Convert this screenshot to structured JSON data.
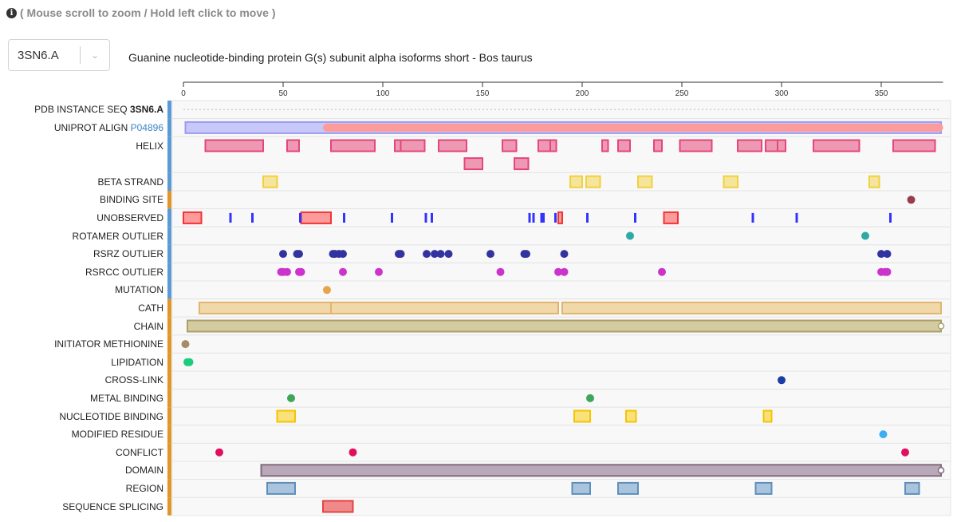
{
  "hint": {
    "icon": "info-circle-icon",
    "text": "( Mouse scroll to zoom / Hold left click to move )"
  },
  "selector": {
    "value": "3SN6.A"
  },
  "protein_title": "Guanine nucleotide-binding protein G(s) subunit alpha isoforms short - Bos taurus",
  "axis": {
    "ticks": [
      "0",
      "50",
      "100",
      "150",
      "200",
      "250",
      "300",
      "350"
    ],
    "range": [
      0,
      381
    ]
  },
  "tracks": [
    {
      "label": "PDB INSTANCE SEQ",
      "suffix": "3SN6.A",
      "suffix_style": "bold",
      "side": "#5b9bd5",
      "type": "seq"
    },
    {
      "label": "UNIPROT ALIGN",
      "suffix": "P04896",
      "suffix_style": "link",
      "side": "#5b9bd5",
      "type": "align",
      "fill": "#c8c8f8",
      "stroke": "#9a9af5",
      "band": "#fd9a9a",
      "features": [
        [
          1,
          380
        ]
      ],
      "aligned": [
        [
          70,
          381
        ]
      ]
    },
    {
      "label": "HELIX",
      "side": "#5b9bd5",
      "type": "rect",
      "rows": 2,
      "fill": "#ee99b4",
      "stroke": "#e4457a",
      "features": [
        [
          11,
          40
        ],
        [
          52,
          58
        ],
        [
          74,
          96
        ],
        [
          106,
          109
        ],
        [
          109,
          121
        ],
        [
          128,
          142
        ],
        [
          160,
          167
        ],
        [
          178,
          184
        ],
        [
          184,
          187
        ],
        [
          210,
          213
        ],
        [
          218,
          224
        ],
        [
          236,
          240
        ],
        [
          249,
          265
        ],
        [
          278,
          290
        ],
        [
          292,
          298
        ],
        [
          298,
          302
        ],
        [
          316,
          339
        ],
        [
          356,
          377
        ]
      ],
      "features2": [
        [
          141,
          150
        ],
        [
          166,
          173
        ]
      ]
    },
    {
      "label": "BETA STRAND",
      "side": "#5b9bd5",
      "type": "rect",
      "fill": "#f5e49b",
      "stroke": "#f1d13a",
      "features": [
        [
          40,
          47
        ],
        [
          194,
          200
        ],
        [
          202,
          209
        ],
        [
          228,
          235
        ],
        [
          271,
          278
        ],
        [
          344,
          349
        ]
      ]
    },
    {
      "label": "BINDING SITE",
      "side": "#e0962a",
      "type": "dot",
      "color": "#963c4c",
      "features": [
        365
      ]
    },
    {
      "label": "UNOBSERVED",
      "side": "#5b9bd5",
      "type": "rect",
      "fill": "#fd9a9a",
      "stroke": "#f33333",
      "features": [
        [
          0,
          9
        ],
        [
          59,
          74
        ],
        [
          188,
          190
        ],
        [
          241,
          248
        ]
      ],
      "bars": [
        23,
        34,
        58,
        80,
        104,
        121,
        124,
        173,
        175,
        179,
        180,
        186,
        202,
        226,
        285,
        307,
        354
      ],
      "bar_color": "#3333ff"
    },
    {
      "label": "ROTAMER OUTLIER",
      "side": "#5b9bd5",
      "type": "dot",
      "color": "#2fa9a5",
      "features": [
        224,
        342
      ]
    },
    {
      "label": "RSRZ OUTLIER",
      "side": "#5b9bd5",
      "type": "dot",
      "color": "#3333a0",
      "features": [
        50,
        57,
        58,
        75,
        76,
        78,
        80,
        108,
        109,
        122,
        126,
        129,
        133,
        154,
        171,
        172,
        191,
        350,
        353
      ]
    },
    {
      "label": "RSRCC OUTLIER",
      "side": "#5b9bd5",
      "type": "dot",
      "color": "#cc33cc",
      "features": [
        49,
        50,
        52,
        58,
        59,
        80,
        98,
        159,
        188,
        191,
        240,
        350,
        352,
        353
      ]
    },
    {
      "label": "MUTATION",
      "side": "#5b9bd5",
      "type": "dot",
      "color": "#e8a44a",
      "features": [
        72
      ]
    },
    {
      "label": "CATH",
      "side": "#e0962a",
      "type": "rect",
      "fill": "#f1d8a8",
      "stroke": "#e2b56e",
      "features": [
        [
          8,
          74
        ],
        [
          74,
          188
        ],
        [
          190,
          380
        ]
      ]
    },
    {
      "label": "CHAIN",
      "side": "#e0962a",
      "type": "rect",
      "fill": "#d4cba0",
      "stroke": "#a89f6a",
      "end_circle": true,
      "features": [
        [
          2,
          380
        ]
      ]
    },
    {
      "label": "INITIATOR METHIONINE",
      "side": "#e0962a",
      "type": "dot",
      "color": "#a48d66",
      "features": [
        1
      ]
    },
    {
      "label": "LIPIDATION",
      "side": "#e0962a",
      "type": "dot",
      "color": "#1dcc7c",
      "features": [
        2,
        3
      ]
    },
    {
      "label": "CROSS-LINK",
      "side": "#e0962a",
      "type": "dot",
      "color": "#1a3ea5",
      "features": [
        300
      ]
    },
    {
      "label": "METAL BINDING",
      "side": "#e0962a",
      "type": "dot",
      "color": "#3fa558",
      "features": [
        54,
        204
      ]
    },
    {
      "label": "NUCLEOTIDE BINDING",
      "side": "#e0962a",
      "type": "rect",
      "fill": "#fae17a",
      "stroke": "#f5c400",
      "features": [
        [
          47,
          56
        ],
        [
          196,
          204
        ],
        [
          222,
          227
        ],
        [
          291,
          295
        ]
      ]
    },
    {
      "label": "MODIFIED RESIDUE",
      "side": "#e0962a",
      "type": "dot",
      "color": "#3dadf0",
      "features": [
        351
      ]
    },
    {
      "label": "CONFLICT",
      "side": "#e0962a",
      "type": "dot",
      "color": "#e0105e",
      "features": [
        18,
        85,
        362
      ]
    },
    {
      "label": "DOMAIN",
      "side": "#e0962a",
      "type": "rect",
      "fill": "#b8a8b8",
      "stroke": "#7f6a7f",
      "end_circle": true,
      "features": [
        [
          39,
          380
        ]
      ]
    },
    {
      "label": "REGION",
      "side": "#e0962a",
      "type": "rect",
      "fill": "#a9c4dc",
      "stroke": "#5e8fbc",
      "features": [
        [
          42,
          56
        ],
        [
          195,
          204
        ],
        [
          218,
          228
        ],
        [
          287,
          295
        ],
        [
          362,
          369
        ]
      ]
    },
    {
      "label": "SEQUENCE SPLICING",
      "side": "#e0962a",
      "type": "rect",
      "fill": "#f08a8a",
      "stroke": "#e24444",
      "features": [
        [
          70,
          85
        ]
      ]
    }
  ]
}
